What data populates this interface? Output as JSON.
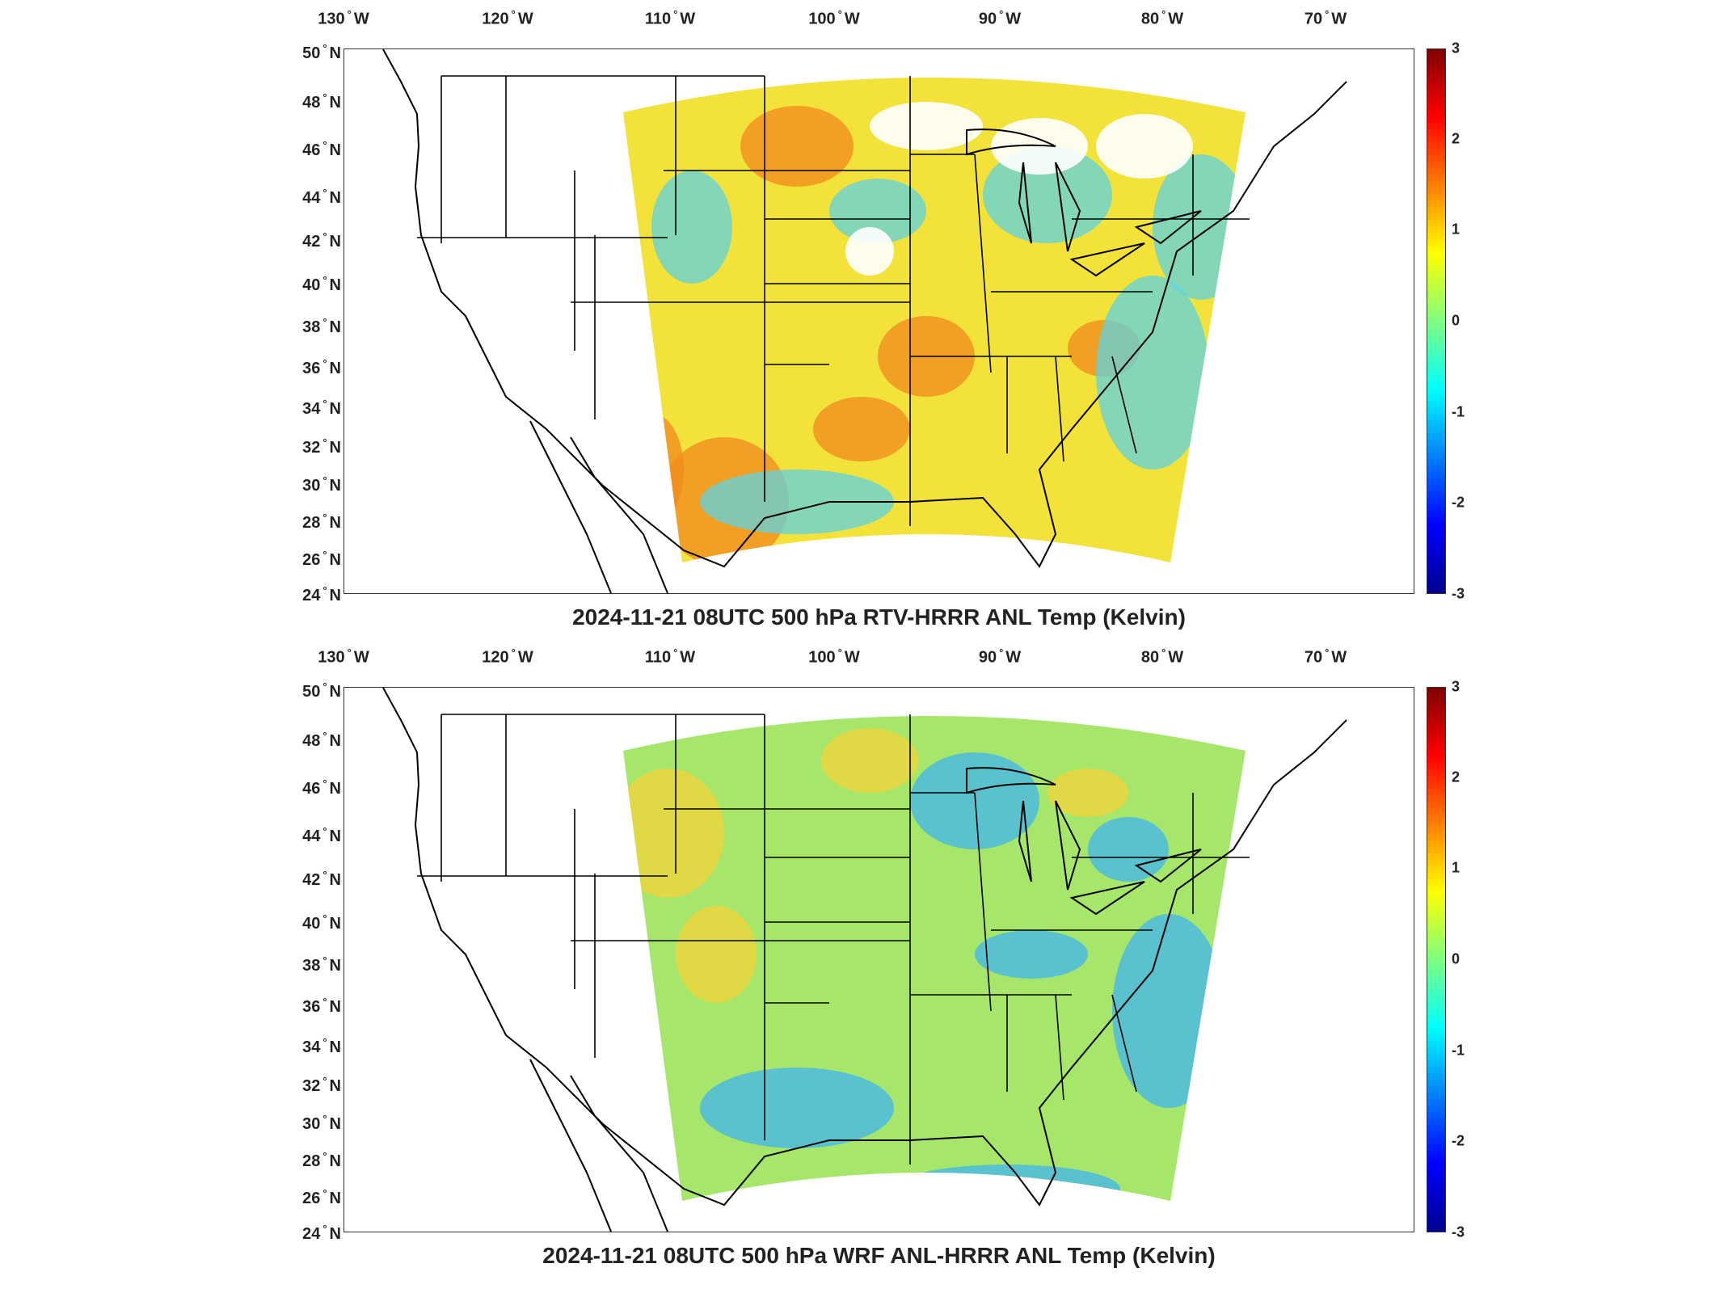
{
  "lon_labels": [
    {
      "deg": "130",
      "dir": "W"
    },
    {
      "deg": "120",
      "dir": "W"
    },
    {
      "deg": "110",
      "dir": "W"
    },
    {
      "deg": "100",
      "dir": "W"
    },
    {
      "deg": "90",
      "dir": "W"
    },
    {
      "deg": "80",
      "dir": "W"
    },
    {
      "deg": "70",
      "dir": "W"
    }
  ],
  "lat_labels": [
    {
      "deg": "50",
      "dir": "N"
    },
    {
      "deg": "48",
      "dir": "N"
    },
    {
      "deg": "46",
      "dir": "N"
    },
    {
      "deg": "44",
      "dir": "N"
    },
    {
      "deg": "42",
      "dir": "N"
    },
    {
      "deg": "40",
      "dir": "N"
    },
    {
      "deg": "38",
      "dir": "N"
    },
    {
      "deg": "36",
      "dir": "N"
    },
    {
      "deg": "34",
      "dir": "N"
    },
    {
      "deg": "32",
      "dir": "N"
    },
    {
      "deg": "30",
      "dir": "N"
    },
    {
      "deg": "28",
      "dir": "N"
    },
    {
      "deg": "26",
      "dir": "N"
    },
    {
      "deg": "24",
      "dir": "N"
    }
  ],
  "colorbar": {
    "min": -3,
    "max": 3,
    "ticks": [
      "3",
      "2",
      "1",
      "0",
      "-1",
      "-2",
      "-3"
    ],
    "colormap": "jet",
    "colors": [
      "#00008f",
      "#0000ff",
      "#007fff",
      "#00ffff",
      "#7fff7f",
      "#ffff00",
      "#ff7f00",
      "#ff0000",
      "#7f0000"
    ]
  },
  "panels": [
    {
      "title": "2024-11-21 08UTC 500 hPa RTV-HRRR ANL Temp (Kelvin)",
      "field": "RTV-HRRR ANL",
      "dominant_color": "#f2e23a",
      "warm_color": "#f08a1e",
      "cool_color": "#5fd3e0"
    },
    {
      "title": "2024-11-21 08UTC 500 hPa WRF ANL-HRRR ANL Temp (Kelvin)",
      "field": "WRF ANL-HRRR ANL",
      "dominant_color": "#a6e66a",
      "warm_color": "#f3d43a",
      "cool_color": "#3fb5f0"
    }
  ]
}
